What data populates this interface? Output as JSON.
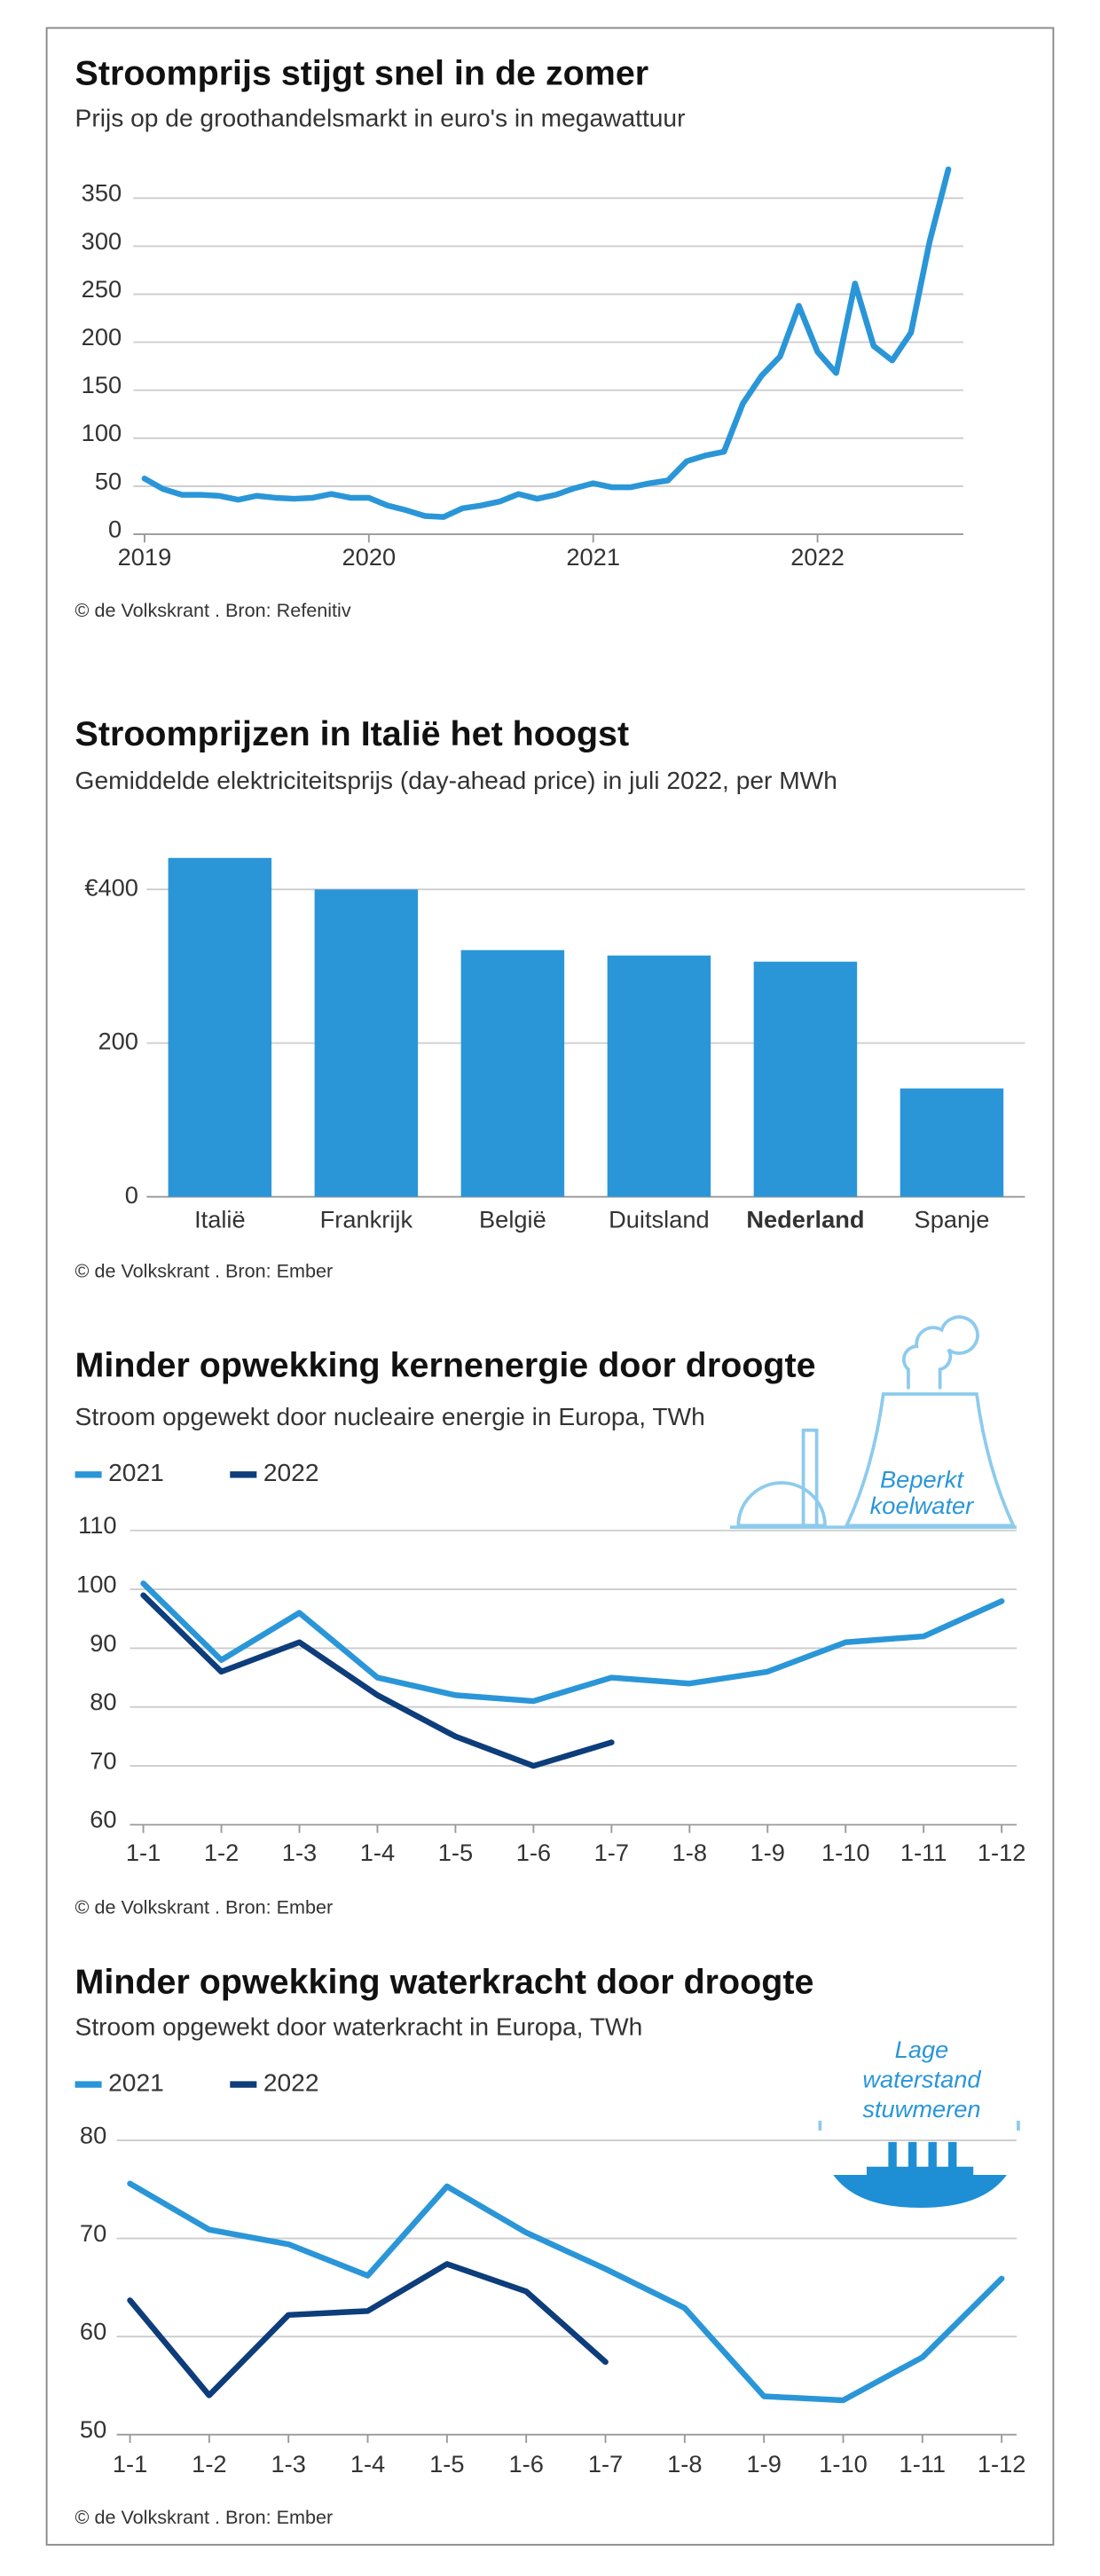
{
  "chart_data": [
    {
      "type": "line",
      "title": "Stroomprijs stijgt snel in de zomer",
      "subtitle": "Prijs op de groothandelsmarkt in euro's in megawattuur",
      "source": "© de Volkskrant  .  Bron:  Refenitiv",
      "x": [
        2019,
        2019.083,
        2019.167,
        2019.25,
        2019.333,
        2019.417,
        2019.5,
        2019.583,
        2019.667,
        2019.75,
        2019.833,
        2019.917,
        2020,
        2020.083,
        2020.167,
        2020.25,
        2020.333,
        2020.417,
        2020.5,
        2020.583,
        2020.667,
        2020.75,
        2020.833,
        2020.917,
        2021,
        2021.083,
        2021.167,
        2021.25,
        2021.333,
        2021.417,
        2021.5,
        2021.583,
        2021.667,
        2021.75,
        2021.833,
        2021.917,
        2022,
        2022.083,
        2022.167,
        2022.25,
        2022.333,
        2022.417,
        2022.5,
        2022.583
      ],
      "series": [
        {
          "name": "Prijs",
          "color": "#2a96d8",
          "values": [
            58,
            47,
            41,
            41,
            40,
            36,
            40,
            38,
            37,
            38,
            42,
            38,
            38,
            30,
            25,
            19,
            18,
            27,
            30,
            34,
            42,
            37,
            41,
            48,
            53,
            49,
            49,
            53,
            56,
            76,
            82,
            86,
            136,
            165,
            185,
            238,
            190,
            168,
            261,
            196,
            181,
            210,
            305,
            380
          ]
        }
      ],
      "xlim": [
        2018.95,
        2022.65
      ],
      "xticks": [
        2019,
        2020,
        2021,
        2022
      ],
      "ylim": [
        0,
        380
      ],
      "yticks": [
        0,
        50,
        100,
        150,
        200,
        250,
        300,
        350
      ],
      "grid": true
    },
    {
      "type": "bar",
      "title": "Stroomprijzen in Italië het hoogst",
      "subtitle": "Gemiddelde elektriciteitsprijs (day-ahead price) in juli 2022, per MWh",
      "source": "© de Volkskrant  .  Bron:  Ember",
      "categories": [
        "Italië",
        "Frankrijk",
        "België",
        "Duitsland",
        "Nederland",
        "Spanje"
      ],
      "bold_category": "Nederland",
      "values": [
        441,
        400,
        321,
        314,
        306,
        141
      ],
      "color": "#2a96d8",
      "ylim": [
        0,
        460
      ],
      "yticks": [
        0,
        200,
        {
          "value": 400,
          "label": "€400"
        }
      ],
      "grid": true
    },
    {
      "type": "line",
      "title": "Minder opwekking kernenergie door droogte",
      "subtitle": "Stroom opgewekt door nucleaire energie in Europa, TWh",
      "source": "© de Volkskrant  .  Bron:  Ember",
      "annotation": [
        "Beperkt",
        "koelwater"
      ],
      "categories": [
        "1-1",
        "1-2",
        "1-3",
        "1-4",
        "1-5",
        "1-6",
        "1-7",
        "1-8",
        "1-9",
        "1-10",
        "1-11",
        "1-12"
      ],
      "series": [
        {
          "name": "2021",
          "color": "#2a96d8",
          "values": [
            101,
            88,
            96,
            85,
            82,
            81,
            85,
            84,
            86,
            91,
            92,
            98
          ]
        },
        {
          "name": "2022",
          "color": "#0d3d7a",
          "values": [
            99,
            86,
            91,
            82,
            75,
            70,
            74,
            null,
            null,
            null,
            null,
            null
          ]
        }
      ],
      "ylim": [
        60,
        110
      ],
      "yticks": [
        60,
        70,
        80,
        90,
        100,
        110
      ],
      "grid": true
    },
    {
      "type": "line",
      "title": "Minder opwekking waterkracht door droogte",
      "subtitle": "Stroom opgewekt door waterkracht in Europa, TWh",
      "source": "© de Volkskrant  .  Bron:  Ember",
      "annotation": [
        "Lage",
        "waterstand",
        "stuwmeren"
      ],
      "categories": [
        "1-1",
        "1-2",
        "1-3",
        "1-4",
        "1-5",
        "1-6",
        "1-7",
        "1-8",
        "1-9",
        "1-10",
        "1-11",
        "1-12"
      ],
      "series": [
        {
          "name": "2021",
          "color": "#2a96d8",
          "values": [
            75.6,
            70.9,
            69.4,
            66.2,
            75.3,
            70.6,
            66.9,
            62.9,
            53.9,
            53.5,
            57.9,
            65.9
          ]
        },
        {
          "name": "2022",
          "color": "#0d3d7a",
          "values": [
            63.7,
            54,
            62.2,
            62.6,
            67.4,
            64.6,
            57.4,
            null,
            null,
            null,
            null,
            null
          ]
        }
      ],
      "ylim": [
        50,
        80
      ],
      "yticks": [
        50,
        60,
        70,
        80
      ],
      "grid": true
    }
  ]
}
